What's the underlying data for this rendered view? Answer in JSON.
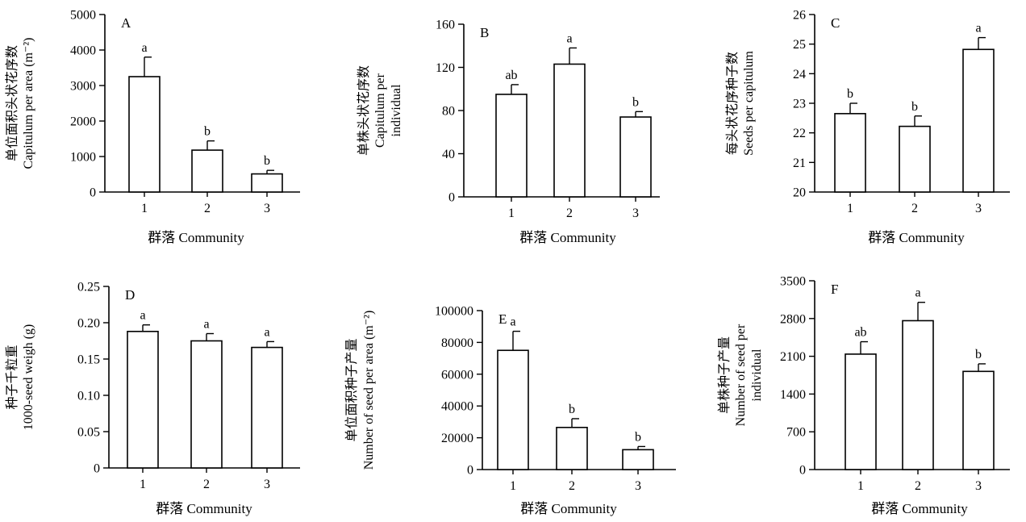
{
  "chart_data": [
    {
      "panel": "A",
      "type": "bar",
      "categories": [
        "1",
        "2",
        "3"
      ],
      "values": [
        3250,
        1180,
        510
      ],
      "errors": [
        550,
        260,
        100
      ],
      "letters": [
        "a",
        "b",
        "b"
      ],
      "ylim": [
        0,
        5000
      ],
      "yticks": [
        0,
        1000,
        2000,
        3000,
        4000,
        5000
      ],
      "ytick_labels": [
        "0",
        "1000",
        "2000",
        "3000",
        "4000",
        "5000"
      ],
      "ylabel": [
        "单位面积头状花序数",
        "Capitulum per area (m⁻²)"
      ],
      "xlabel": "群落 Community"
    },
    {
      "panel": "B",
      "type": "bar",
      "categories": [
        "1",
        "2",
        "3"
      ],
      "values": [
        95,
        123,
        74
      ],
      "errors": [
        9,
        15,
        5
      ],
      "letters": [
        "ab",
        "a",
        "b"
      ],
      "ylim": [
        0,
        160
      ],
      "yticks": [
        0,
        40,
        80,
        120,
        160
      ],
      "ytick_labels": [
        "0",
        "40",
        "80",
        "120",
        "160"
      ],
      "ylabel": [
        "单株头状花序数",
        "Capitulum per",
        "individual"
      ],
      "xlabel": "群落 Community"
    },
    {
      "panel": "C",
      "type": "bar",
      "categories": [
        "1",
        "2",
        "3"
      ],
      "values": [
        22.65,
        22.22,
        24.82
      ],
      "errors": [
        0.35,
        0.35,
        0.4
      ],
      "letters": [
        "b",
        "b",
        "a"
      ],
      "ylim": [
        20,
        26
      ],
      "yticks": [
        20,
        21,
        22,
        23,
        24,
        25,
        26
      ],
      "ytick_labels": [
        "20",
        "21",
        "22",
        "23",
        "24",
        "25",
        "26"
      ],
      "ylabel": [
        "每头状花序种子数",
        "Seeds per capitulum"
      ],
      "xlabel": "群落 Community"
    },
    {
      "panel": "D",
      "type": "bar",
      "categories": [
        "1",
        "2",
        "3"
      ],
      "values": [
        0.188,
        0.175,
        0.166
      ],
      "errors": [
        0.009,
        0.01,
        0.008
      ],
      "letters": [
        "a",
        "a",
        "a"
      ],
      "ylim": [
        0,
        0.25
      ],
      "yticks": [
        0,
        0.05,
        0.1,
        0.15,
        0.2,
        0.25
      ],
      "ytick_labels": [
        "0",
        "0.05",
        "0.10",
        "0.15",
        "0.20",
        "0.25"
      ],
      "ylabel": [
        "种子千粒重",
        "1000-seed weigh (g)"
      ],
      "xlabel": "群落 Community"
    },
    {
      "panel": "E",
      "type": "bar",
      "categories": [
        "1",
        "2",
        "3"
      ],
      "values": [
        75000,
        26500,
        12500
      ],
      "errors": [
        12000,
        5500,
        2000
      ],
      "letters": [
        "a",
        "b",
        "b"
      ],
      "ylim": [
        0,
        100000
      ],
      "yticks": [
        0,
        20000,
        40000,
        60000,
        80000,
        100000
      ],
      "ytick_labels": [
        "0",
        "20000",
        "40000",
        "60000",
        "80000",
        "100000"
      ],
      "ylabel": [
        "单位面积种子产量",
        "Number of seed per area (m⁻²)"
      ],
      "xlabel": "群落 Community"
    },
    {
      "panel": "F",
      "type": "bar",
      "categories": [
        "1",
        "2",
        "3"
      ],
      "values": [
        2140,
        2760,
        1820
      ],
      "errors": [
        230,
        340,
        140
      ],
      "letters": [
        "ab",
        "a",
        "b"
      ],
      "ylim": [
        0,
        3500
      ],
      "yticks": [
        0,
        700,
        1400,
        2100,
        2800,
        3500
      ],
      "ytick_labels": [
        "0",
        "700",
        "1400",
        "2100",
        "2800",
        "3500"
      ],
      "ylabel": [
        "单株种子产量",
        "Number of seed per",
        "individual"
      ],
      "xlabel": "群落 Community"
    }
  ]
}
